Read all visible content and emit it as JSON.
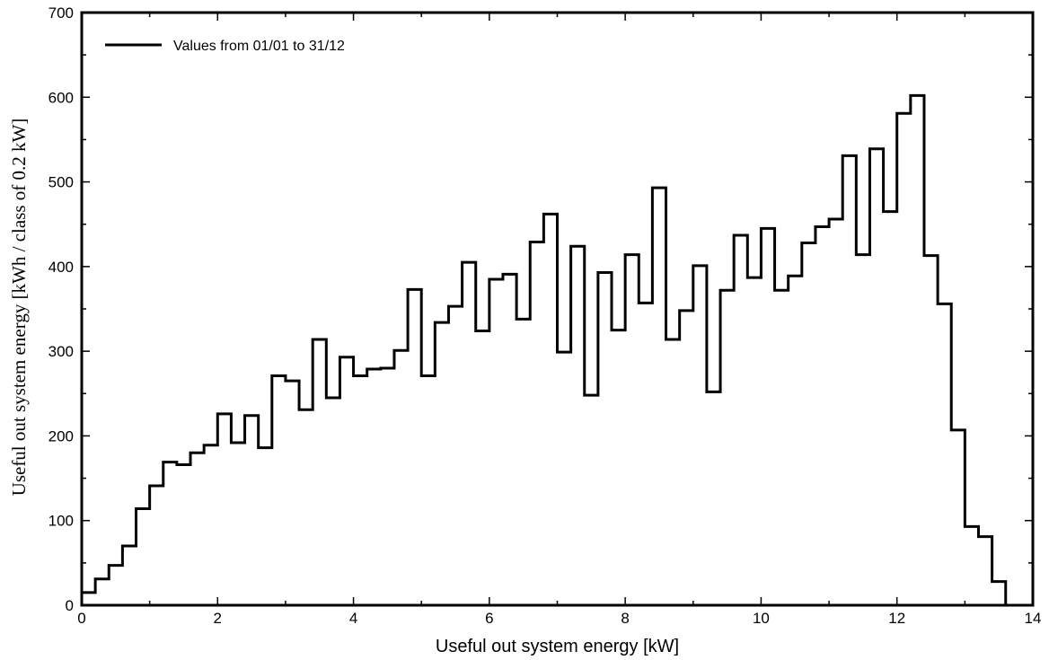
{
  "chart_data": {
    "type": "line",
    "drawstyle": "steps",
    "xlabel": "Useful out system energy [kW]",
    "ylabel": "Useful out system energy [kWh / class of 0.2 kW]",
    "xlim": [
      0,
      14
    ],
    "ylim": [
      0,
      700
    ],
    "xticks": [
      0,
      2,
      4,
      6,
      8,
      10,
      12,
      14
    ],
    "yticks": [
      0,
      100,
      200,
      300,
      400,
      500,
      600,
      700
    ],
    "grid": false,
    "legend_position": "top-left",
    "series": [
      {
        "name": "Values from 01/01 to 31/12",
        "color": "#000000",
        "bin_width": 0.2,
        "bin_start": 0,
        "values": [
          15,
          31,
          47,
          70,
          114,
          141,
          169,
          166,
          180,
          189,
          226,
          192,
          224,
          186,
          271,
          265,
          231,
          314,
          245,
          293,
          271,
          279,
          280,
          301,
          373,
          271,
          334,
          353,
          405,
          324,
          385,
          391,
          338,
          429,
          462,
          299,
          424,
          248,
          393,
          325,
          414,
          357,
          493,
          314,
          348,
          401,
          252,
          372,
          437,
          387,
          445,
          372,
          389,
          428,
          447,
          456,
          531,
          414,
          539,
          465,
          581,
          602,
          413,
          356,
          207,
          93,
          81,
          28
        ]
      }
    ]
  }
}
